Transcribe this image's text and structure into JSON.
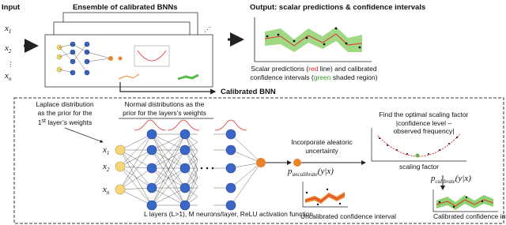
{
  "input": {
    "title": "Input",
    "x1": {
      "symbol": "x",
      "subscript": "1"
    },
    "x2": {
      "symbol": "x",
      "subscript": "2"
    },
    "ellipsis": "⋮",
    "xn": {
      "symbol": "x",
      "subscript": "n"
    }
  },
  "ensemble": {
    "title": "Ensemble of calibrated BNNs",
    "ellipsis": "⋰"
  },
  "output": {
    "title": "Output: scalar predictions & confidence intervals",
    "caption": [
      [
        "Scalar predictions (",
        "red",
        " line) and calibrated"
      ],
      [
        "confidence intervals (",
        "green",
        " shaded region)"
      ]
    ]
  },
  "calibrated_bnn": {
    "title": "Calibrated BNN",
    "laplace": {
      "lines": [
        "Laplace distribution",
        "as the prior for the"
      ],
      "last": [
        "1",
        "st",
        " layer’s weights"
      ]
    },
    "normal": {
      "lines": [
        "Normal distributions as the",
        "prior for the layers’s weights"
      ]
    },
    "inputs": [
      {
        "symbol": "x",
        "subscript": "1"
      },
      {
        "symbol": "x",
        "subscript": "2"
      },
      {
        "symbol": "x",
        "subscript": "n"
      }
    ],
    "network_caption": "L layers (L>1), M neurons/layer, ReLU activation function",
    "aleatoric": [
      "Incorporate aleatoric",
      "uncertainty"
    ],
    "p_uncal": {
      "symbol": "p",
      "subscript": "uncalibrate",
      "argument": "(y|x)"
    },
    "uncal_caption": "Uncalibrated confidence interval",
    "scaling": {
      "title": "Find the optimal scaling factor",
      "ylabel": [
        "|confidence level –",
        "observed frequency|"
      ],
      "xlabel": "scaling factor"
    },
    "p_cal": {
      "symbol": "p",
      "subscript": "calibrate",
      "argument": "(y|x)"
    },
    "cal_caption": "Calibrated confidence interval"
  }
}
